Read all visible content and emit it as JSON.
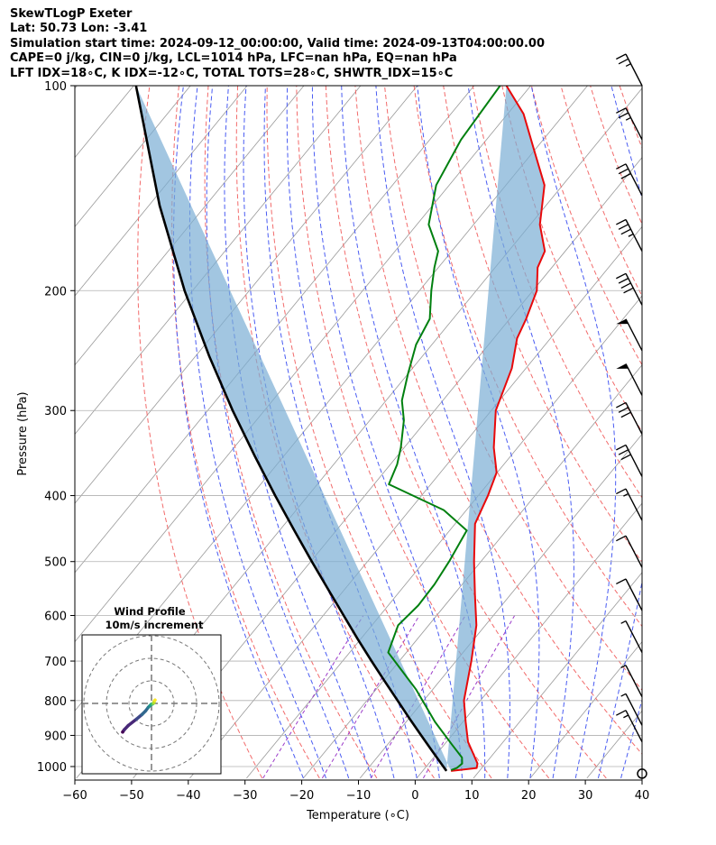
{
  "header": {
    "line1": "SkewTLogP Exeter",
    "line2": "Lat: 50.73   Lon: -3.41",
    "line3": "Simulation start time: 2024-09-12_00:00:00, Valid time: 2024-09-13T04:00:00.00",
    "line4": "CAPE=0 j/kg, CIN=0 j/kg, LCL=1014 hPa, LFC=nan hPa, EQ=nan hPa",
    "line5": "LFT IDX=18∘C, K IDX=-12∘C, TOTAL TOTS=28∘C, SHWTR_IDX=15∘C"
  },
  "chart_data": {
    "type": "line",
    "xlabel": "Temperature (∘C)",
    "ylabel": "Pressure (hPa)",
    "xlim": [
      -60,
      40
    ],
    "ylim": [
      1040,
      100
    ],
    "y_scale": "log",
    "x_ticks": [
      -60,
      -50,
      -40,
      -30,
      -20,
      -10,
      0,
      10,
      20,
      30,
      40
    ],
    "x_tick_labels": [
      "−60",
      "−50",
      "−40",
      "−30",
      "−20",
      "−10",
      "0",
      "10",
      "20",
      "30",
      "40"
    ],
    "y_ticks": [
      100,
      200,
      300,
      400,
      500,
      600,
      700,
      800,
      900,
      1000
    ],
    "y_tick_labels": [
      "100",
      "200",
      "300",
      "400",
      "500",
      "600",
      "700",
      "800",
      "900",
      "1000"
    ],
    "grid": true,
    "colors": {
      "temperature": "#e8090b",
      "dewpoint": "#00800f",
      "parcel": "#000000",
      "cin_shade": "#7aaed4",
      "dry_adiabats": "#f26b6b",
      "moist_adiabats": "#4a5cf2",
      "mixing_ratio": "#9b3ac9",
      "isotherms": "#999999"
    },
    "series": [
      {
        "role": "temperature",
        "pressure": [
          100,
          110,
          125,
          140,
          160,
          175,
          185,
          200,
          220,
          235,
          260,
          300,
          340,
          370,
          400,
          440,
          500,
          560,
          620,
          700,
          800,
          860,
          920,
          960,
          990,
          1005,
          1015
        ],
        "temperature": [
          -84.3,
          -77.2,
          -69.8,
          -63.2,
          -58.3,
          -53.6,
          -52.5,
          -49.3,
          -47.1,
          -45.9,
          -42.5,
          -39.2,
          -34.2,
          -30.1,
          -28.3,
          -26.5,
          -21.2,
          -16.2,
          -11.6,
          -7.3,
          -2.9,
          0.5,
          3.8,
          6.6,
          8.6,
          9.1,
          5.0
        ]
      },
      {
        "role": "dewpoint",
        "pressure": [
          100,
          120,
          140,
          160,
          175,
          185,
          200,
          220,
          240,
          265,
          290,
          310,
          340,
          360,
          385,
          420,
          450,
          500,
          540,
          580,
          620,
          680,
          770,
          860,
          930,
          970,
          990,
          1005,
          1012
        ],
        "temperature": [
          -85.4,
          -84.5,
          -82.3,
          -77.9,
          -72.4,
          -70.7,
          -67.9,
          -64.1,
          -62.8,
          -60.0,
          -57.2,
          -54.0,
          -50.6,
          -48.8,
          -47.4,
          -34.0,
          -27.0,
          -25.6,
          -24.9,
          -24.7,
          -25.4,
          -23.2,
          -13.0,
          -4.9,
          1.5,
          5.0,
          5.9,
          5.6,
          4.9
        ]
      },
      {
        "role": "parcel",
        "pressure": [
          1015,
          1000,
          950,
          900,
          850,
          800,
          750,
          700,
          650,
          600,
          550,
          500,
          450,
          400,
          350,
          300,
          250,
          200,
          150,
          100
        ],
        "temperature": [
          4.2,
          3.0,
          -1.1,
          -5.4,
          -9.9,
          -14.6,
          -19.6,
          -24.9,
          -30.5,
          -36.4,
          -42.8,
          -49.8,
          -57.4,
          -65.8,
          -75.1,
          -85.6,
          -97.5,
          -111.4,
          -128.1,
          -149.6
        ]
      }
    ],
    "wind_barbs": {
      "pressure": [
        100,
        120,
        145,
        175,
        210,
        245,
        285,
        325,
        375,
        435,
        510,
        590,
        680,
        790,
        870,
        920,
        1012
      ],
      "speed_kt": [
        25,
        25,
        30,
        35,
        40,
        50,
        50,
        30,
        30,
        15,
        10,
        10,
        5,
        5,
        5,
        15,
        0
      ]
    },
    "hodograph": {
      "title": "Wind Profile",
      "subtitle": "10m/s increment",
      "rings_ms": [
        10,
        20,
        30
      ],
      "u_ms": [
        -12.8,
        -12.8,
        -12.1,
        -10.3,
        -6.7,
        -4.2,
        -2.6,
        -1.4,
        -0.5,
        -0.1,
        0.1,
        0.3,
        0.7,
        1.1,
        1.2,
        1.4,
        1.6
      ],
      "v_ms": [
        -12.7,
        -12.7,
        -11.7,
        -9.8,
        -7.0,
        -4.9,
        -3.3,
        -1.7,
        -0.8,
        -0.4,
        -0.3,
        -0.3,
        -0.1,
        0.3,
        0.9,
        1.3,
        1.5
      ]
    }
  }
}
